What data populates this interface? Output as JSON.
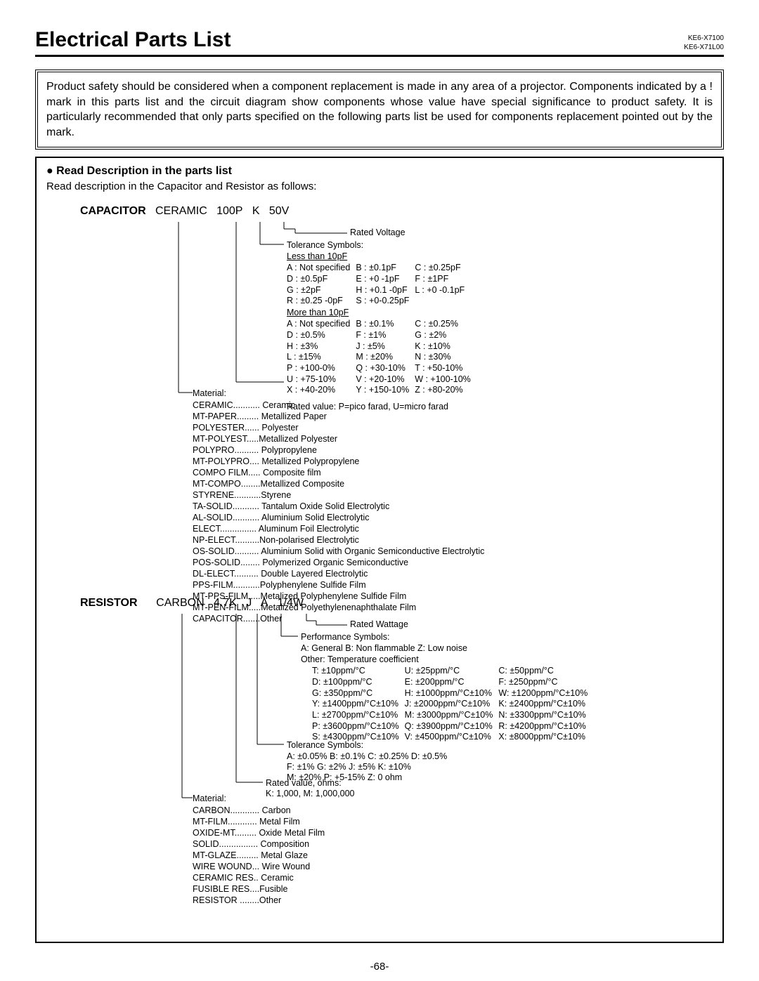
{
  "header": {
    "title": "Electrical Parts List",
    "codes": [
      "KE6-X7100",
      "KE6-X71L00"
    ]
  },
  "safety_text": "Product safety should be considered when a component replacement is made in any area of a projector. Components indicated by a ! mark in this parts list and the circuit diagram show components whose value have special significance to product safety. It is particularly recommended that only parts specified on the following parts list be used for components replacement pointed out by the mark.",
  "read": {
    "heading": "● Read Description in the parts list",
    "sub": "Read description in the Capacitor and Resistor as follows:"
  },
  "capacitor": {
    "label": "CAPACITOR",
    "fields": [
      "CERAMIC",
      "100P",
      "K",
      "50V"
    ],
    "rated_voltage": "Rated Voltage",
    "tol_header": "Tolerance Symbols:",
    "less": "Less than 10pF",
    "less_rows": [
      [
        "A : Not specified",
        "B : ±0.1pF",
        "C : ±0.25pF"
      ],
      [
        "D : ±0.5pF",
        "E : +0 -1pF",
        "F : ±1PF"
      ],
      [
        "G : ±2pF",
        "H : +0.1 -0pF",
        "L : +0 -0.1pF"
      ],
      [
        "R : ±0.25 -0pF",
        "S : +0-0.25pF",
        ""
      ]
    ],
    "more": "More than 10pF",
    "more_rows": [
      [
        "A : Not specified",
        "B : ±0.1%",
        "C : ±0.25%"
      ],
      [
        "D : ±0.5%",
        "F : ±1%",
        "G : ±2%"
      ],
      [
        "H : ±3%",
        "J : ±5%",
        "K : ±10%"
      ],
      [
        "L : ±15%",
        "M : ±20%",
        "N : ±30%"
      ],
      [
        "P : +100-0%",
        "Q : +30-10%",
        "T : +50-10%"
      ],
      [
        "U : +75-10%",
        "V : +20-10%",
        "W : +100-10%"
      ],
      [
        "X : +40-20%",
        "Y : +150-10%",
        "Z : +80-20%"
      ]
    ],
    "rated_value": "Rated value: P=pico farad, U=micro farad",
    "material": "Material:",
    "materials": [
      "CERAMIC........... Ceramic",
      "MT-PAPER......... Metallized Paper",
      "POLYESTER...... Polyester",
      "MT-POLYEST.....Metallized Polyester",
      "POLYPRO.......... Polypropylene",
      "MT-POLYPRO.... Metallized Polypropylene",
      "COMPO FILM..... Composite film",
      "MT-COMPO........Metallized Composite",
      "STYRENE...........Styrene",
      "TA-SOLID........... Tantalum Oxide Solid Electrolytic",
      "AL-SOLID........... Aluminium Solid Electrolytic",
      "ELECT............... Aluminum Foil Electrolytic",
      "NP-ELECT..........Non-polarised Electrolytic",
      "OS-SOLID.......... Aluminium Solid with Organic Semiconductive Electrolytic",
      "POS-SOLID........ Polymerized Organic Semiconductive",
      "DL-ELECT.......... Double Layered Electrolytic",
      "PPS-FILM...........Polyphenylene Sulfide Film",
      "MT-PPS-FILM.....Metalized Polyphenylene Sulfide Film",
      "MT-PEN-FILM.....Metalized Polyethylenenaphthalate Film",
      "CAPACITOR.......Other"
    ]
  },
  "resistor": {
    "label": "RESISTOR",
    "fields": [
      "CARBON",
      "4.7K",
      "J",
      "A",
      "1/4W"
    ],
    "rated_wattage": "Rated Wattage",
    "perf_header": "Performance Symbols:",
    "perf_line": "A: General  B: Non flammable  Z: Low noise",
    "temp_header": "Other: Temperature coefficient",
    "temp_rows": [
      [
        "T: ±10ppm/°C",
        "U: ±25ppm/°C",
        "C: ±50ppm/°C"
      ],
      [
        "D: ±100ppm/°C",
        "E: ±200ppm/°C",
        "F: ±250ppm/°C"
      ],
      [
        "G: ±350ppm/°C",
        "H: ±1000ppm/°C±10%",
        "W: ±1200ppm/°C±10%"
      ],
      [
        "Y: ±1400ppm/°C±10%",
        "J: ±2000ppm/°C±10%",
        "K: ±2400ppm/°C±10%"
      ],
      [
        "L: ±2700ppm/°C±10%",
        "M: ±3000ppm/°C±10%",
        "N: ±3300ppm/°C±10%"
      ],
      [
        "P: ±3600ppm/°C±10%",
        "Q: ±3900ppm/°C±10%",
        "R: ±4200ppm/°C±10%"
      ],
      [
        "S: ±4300ppm/°C±10%",
        "V: ±4500ppm/°C±10%",
        "X: ±8000ppm/°C±10%"
      ]
    ],
    "tol_header": "Tolerance Symbols:",
    "tol_line1": "A: ±0.05%  B: ±0.1%  C: ±0.25%  D: ±0.5%",
    "tol_line2": "F: ±1%      G: ±2%    J: ±5%      K: ±10%",
    "tol_line3": "M: ±20%    P: +5-15%  Z: 0 ohm",
    "rated_value": "Rated value, ohms:",
    "rated_value2": "K: 1,000,  M: 1,000,000",
    "material": "Material:",
    "materials": [
      "CARBON............ Carbon",
      "MT-FILM............ Metal Film",
      "OXIDE-MT......... Oxide Metal Film",
      "SOLID................ Composition",
      "MT-GLAZE......... Metal Glaze",
      "WIRE WOUND... Wire Wound",
      "CERAMIC RES.. Ceramic",
      "FUSIBLE RES....Fusible",
      "RESISTOR ........Other"
    ]
  },
  "page": "-68-"
}
